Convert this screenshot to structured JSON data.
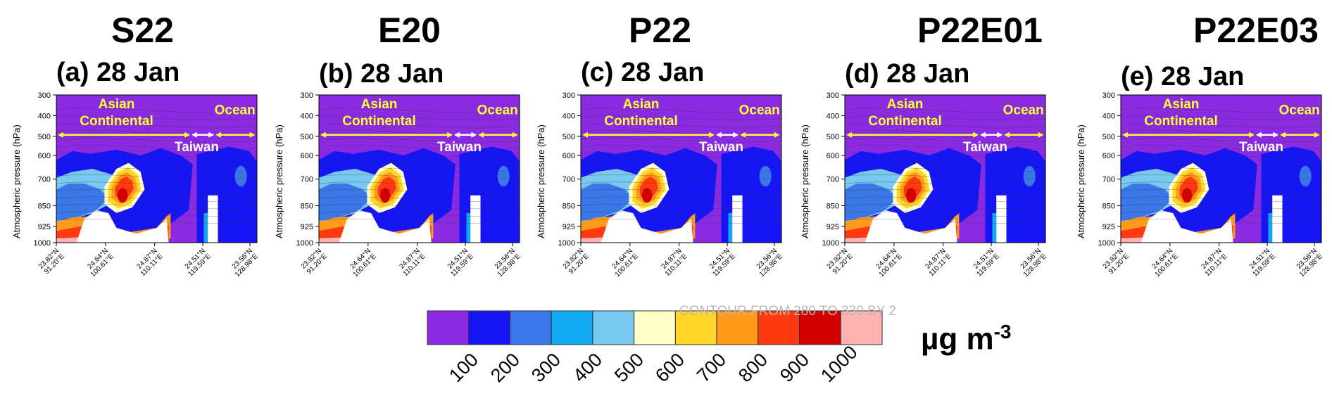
{
  "figure": {
    "unit_base": "µg m",
    "unit_exp": "-3",
    "contour_note": "CONTOUR FROM 280 TO 330 BY 2"
  },
  "colors": {
    "background": "#8a2be2",
    "bins": [
      "#8a2be2",
      "#1515f5",
      "#3a78ea",
      "#12a8f0",
      "#78c8ef",
      "#ffffc8",
      "#ffd52a",
      "#ff9a1a",
      "#ff3a10",
      "#d40000",
      "#ffb2b2"
    ],
    "annotation": "#ffff33",
    "taiwan_arrow": "#ffffff",
    "terrain": "#ffffff"
  },
  "chart_data": [
    {
      "type": "heatmap",
      "model": "S22",
      "title": "(a) 28 Jan",
      "ylabel": "Atmospheric pressure (hPa)",
      "y_ticks": [
        "300",
        "400",
        "500",
        "600",
        "700",
        "850",
        "925",
        "1000"
      ],
      "x_ticks": [
        "23.82°N\n91.20°E",
        "24.64°N\n100.61°E",
        "24.87°N\n110.11°E",
        "24.51°N\n119.59°E",
        "23.56°N\n128.98°E"
      ],
      "regions": [
        {
          "name": "Asian\nContinental"
        },
        {
          "name": "Taiwan"
        },
        {
          "name": "Ocean"
        }
      ]
    },
    {
      "type": "heatmap",
      "model": "E20",
      "title": "(b) 28 Jan",
      "ylabel": "Atmospheric pressure (hPa)",
      "y_ticks": [
        "300",
        "400",
        "500",
        "600",
        "700",
        "850",
        "925",
        "1000"
      ],
      "x_ticks": [
        "23.82°N\n91.20°E",
        "24.64°N\n100.61°E",
        "24.87°N\n110.11°E",
        "24.51°N\n119.59°E",
        "23.56°N\n128.98°E"
      ],
      "regions": [
        {
          "name": "Asian\nContinental"
        },
        {
          "name": "Taiwan"
        },
        {
          "name": "Ocean"
        }
      ]
    },
    {
      "type": "heatmap",
      "model": "P22",
      "title": "(c) 28 Jan",
      "ylabel": "Atmospheric pressure (hPa)",
      "y_ticks": [
        "300",
        "400",
        "500",
        "600",
        "700",
        "850",
        "925",
        "1000"
      ],
      "x_ticks": [
        "23.82°N\n91.20°E",
        "24.64°N\n100.61°E",
        "24.87°N\n110.11°E",
        "24.51°N\n119.59°E",
        "23.56°N\n128.98°E"
      ],
      "regions": [
        {
          "name": "Asian\nContinental"
        },
        {
          "name": "Taiwan"
        },
        {
          "name": "Ocean"
        }
      ]
    },
    {
      "type": "heatmap",
      "model": "P22E01",
      "title": "(d) 28 Jan",
      "ylabel": "Atmospheric pressure (hPa)",
      "y_ticks": [
        "300",
        "400",
        "500",
        "600",
        "700",
        "850",
        "925",
        "1000"
      ],
      "x_ticks": [
        "23.82°N\n91.20°E",
        "24.64°N\n100.61°E",
        "24.87°N\n110.11°E",
        "24.51°N\n119.59°E",
        "23.56°N\n128.98°E"
      ],
      "regions": [
        {
          "name": "Asian\nContinental"
        },
        {
          "name": "Taiwan"
        },
        {
          "name": "Ocean"
        }
      ]
    },
    {
      "type": "heatmap",
      "model": "P22E03",
      "title": "(e) 28 Jan",
      "ylabel": "Atmospheric pressure (hPa)",
      "y_ticks": [
        "300",
        "400",
        "500",
        "600",
        "700",
        "850",
        "925",
        "1000"
      ],
      "x_ticks": [
        "23.82°N\n91.20°E",
        "24.64°N\n100.61°E",
        "24.87°N\n110.11°E",
        "24.51°N\n119.59°E",
        "23.56°N\n128.98°E"
      ],
      "regions": [
        {
          "name": "Asian\nContinental"
        },
        {
          "name": "Taiwan"
        },
        {
          "name": "Ocean"
        }
      ]
    }
  ],
  "colorbar": {
    "ticks": [
      "100",
      "200",
      "300",
      "400",
      "500",
      "600",
      "700",
      "800",
      "900",
      "1000"
    ]
  }
}
